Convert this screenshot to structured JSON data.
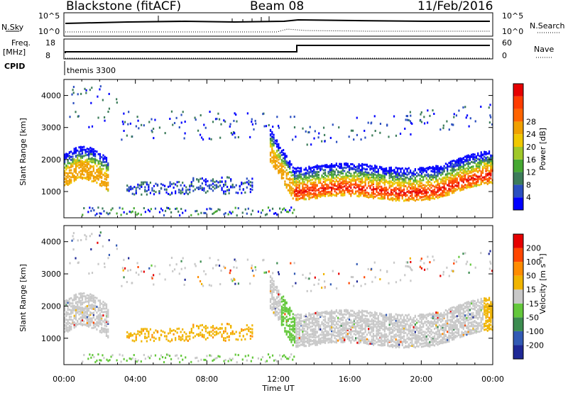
{
  "header": {
    "station": "Blackstone (fitACF)",
    "beam": "Beam 08",
    "date": "11/Feb/2016"
  },
  "top_panel": {
    "nsky_label": "N.Sky",
    "nsky_ticks": [
      "10^5",
      "10^0"
    ],
    "nsearch_label": "N.Search",
    "nsearch_ticks": [
      "10^5",
      "10^0"
    ],
    "freq_label": "Freq.",
    "freq_unit": "[MHz]",
    "freq_ticks": [
      "18",
      "8"
    ],
    "nave_label": "Nave",
    "nave_ticks": [
      "60",
      "0"
    ],
    "cpid_label": "CPID",
    "cpid_value": "themis 3300"
  },
  "chart_data": [
    {
      "type": "heatmap",
      "name": "power-panel",
      "ylabel": "Slant Range [km]",
      "ylim": [
        180,
        4500
      ],
      "yticks": [
        1000,
        2000,
        3000,
        4000
      ],
      "xlim": [
        0,
        24
      ],
      "colorbar": {
        "label": "Power [dB]",
        "ticks": [
          "4",
          "8",
          "12",
          "16",
          "20",
          "24",
          "28"
        ],
        "colors": [
          "#0000ff",
          "#2b4fc0",
          "#3c7c5a",
          "#46a832",
          "#a0c828",
          "#f0c800",
          "#f0a000",
          "#ff6400",
          "#ff3c00",
          "#e60000"
        ]
      }
    },
    {
      "type": "heatmap",
      "name": "velocity-panel",
      "ylabel": "Slant Range [km]",
      "ylim": [
        180,
        4500
      ],
      "yticks": [
        1000,
        2000,
        3000,
        4000
      ],
      "xlim": [
        0,
        24
      ],
      "xlabel": "Time UT",
      "xticks": [
        "00:00",
        "04:00",
        "08:00",
        "12:00",
        "16:00",
        "20:00",
        "00:00"
      ],
      "colorbar": {
        "label": "Velocity [m s⁻¹]",
        "ticks": [
          "200",
          "100",
          "50",
          "15",
          "-15",
          "-50",
          "-100",
          "-200"
        ],
        "colors": [
          "#1e2896",
          "#325ab4",
          "#3c8c50",
          "#64c83c",
          "#c8c8c8",
          "#f0b400",
          "#ff8c00",
          "#ff4600",
          "#e60000"
        ]
      }
    }
  ]
}
